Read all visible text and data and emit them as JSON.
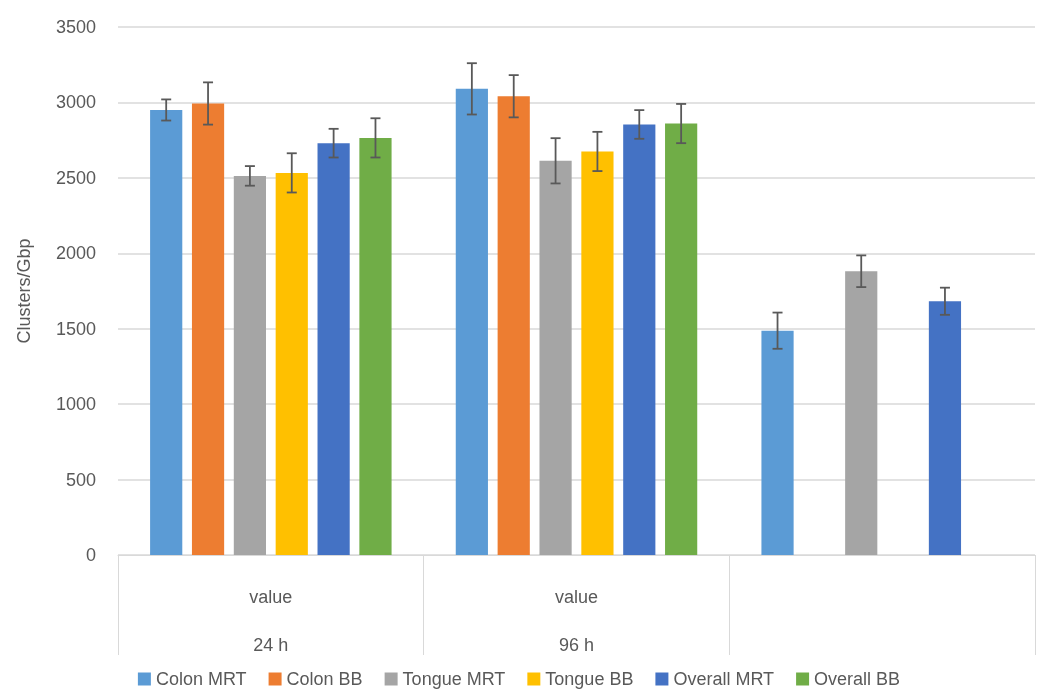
{
  "chart_data": {
    "type": "bar",
    "ylabel": "Clusters/Gbp",
    "categories": [
      "value\n24 h",
      "value\n96 h",
      null
    ],
    "series": [
      {
        "name": "Colon MRT",
        "color": "#5b9bd5",
        "values": [
          2950,
          3090,
          1487
        ],
        "errors": [
          70,
          170,
          120
        ]
      },
      {
        "name": "Colon BB",
        "color": "#ed7d31",
        "values": [
          2993,
          3041,
          null
        ],
        "errors": [
          140,
          140,
          null
        ]
      },
      {
        "name": "Tongue MRT",
        "color": "#a5a5a5",
        "values": [
          2513,
          2613,
          1881
        ],
        "errors": [
          65,
          150,
          105
        ]
      },
      {
        "name": "Tongue BB",
        "color": "#ffc000",
        "values": [
          2533,
          2675,
          null
        ],
        "errors": [
          130,
          130,
          null
        ]
      },
      {
        "name": "Overall MRT",
        "color": "#4472c4",
        "values": [
          2730,
          2854,
          1682
        ],
        "errors": [
          95,
          95,
          90
        ]
      },
      {
        "name": "Overall BB",
        "color": "#70ad47",
        "values": [
          2765,
          2860,
          null
        ],
        "errors": [
          130,
          130,
          null
        ]
      }
    ],
    "ylim": [
      0,
      3500
    ],
    "yticks": [
      0,
      500,
      1000,
      1500,
      2000,
      2500,
      3000,
      3500
    ],
    "grid": "y",
    "legend": "bottom"
  }
}
